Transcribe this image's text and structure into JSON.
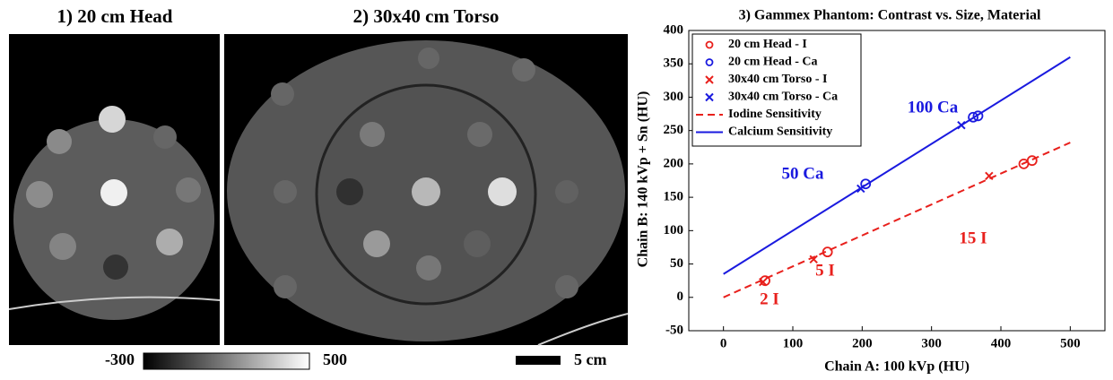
{
  "images": {
    "panels": [
      {
        "title": "1) 20 cm Head"
      },
      {
        "title": "2) 30x40 cm Torso"
      }
    ],
    "colorbar": {
      "min": -300,
      "max": 500
    },
    "scale_bar": "5 cm"
  },
  "chart_data": {
    "type": "scatter",
    "title": "3) Gammex Phantom: Contrast vs. Size, Material",
    "x_label": "Chain A: 100 kVp (HU)",
    "y_label": "Chain B: 140 kVp + Sn (HU)",
    "xlim": [
      -50,
      550
    ],
    "ylim": [
      -50,
      400
    ],
    "xticks": [
      0,
      100,
      200,
      300,
      400,
      500
    ],
    "yticks": [
      -50,
      0,
      50,
      100,
      150,
      200,
      250,
      300,
      350,
      400
    ],
    "grid": false,
    "legend": "upper left",
    "series": [
      {
        "name": "20 cm Head - I",
        "color": "#e8201c",
        "marker": "o",
        "x": [
          60,
          150,
          433,
          445
        ],
        "values": [
          25,
          68,
          200,
          205
        ]
      },
      {
        "name": "20 cm Head - Ca",
        "color": "#1a1adf",
        "marker": "o",
        "x": [
          205,
          360,
          367
        ],
        "values": [
          170,
          270,
          272
        ]
      },
      {
        "name": "30x40 cm Torso - I",
        "color": "#e8201c",
        "marker": "x",
        "x": [
          57,
          130,
          383
        ],
        "values": [
          23,
          57,
          182
        ]
      },
      {
        "name": "30x40 cm Torso - Ca",
        "color": "#1a1adf",
        "marker": "x",
        "x": [
          198,
          343
        ],
        "values": [
          163,
          258
        ]
      },
      {
        "name": "Iodine Sensitivity",
        "color": "#e8201c",
        "linestyle": "dashed",
        "x": [
          0,
          500
        ],
        "values": [
          0,
          232
        ]
      },
      {
        "name": "Calcium Sensitivity",
        "color": "#1a1adf",
        "linestyle": "solid",
        "x": [
          0,
          500
        ],
        "values": [
          35,
          360
        ]
      }
    ],
    "annotations": [
      {
        "text": "2 I",
        "color": "#e8201c"
      },
      {
        "text": "5 I",
        "color": "#e8201c"
      },
      {
        "text": "15 I",
        "color": "#e8201c"
      },
      {
        "text": "50 Ca",
        "color": "#1a1adf"
      },
      {
        "text": "100 Ca",
        "color": "#1a1adf"
      }
    ]
  }
}
